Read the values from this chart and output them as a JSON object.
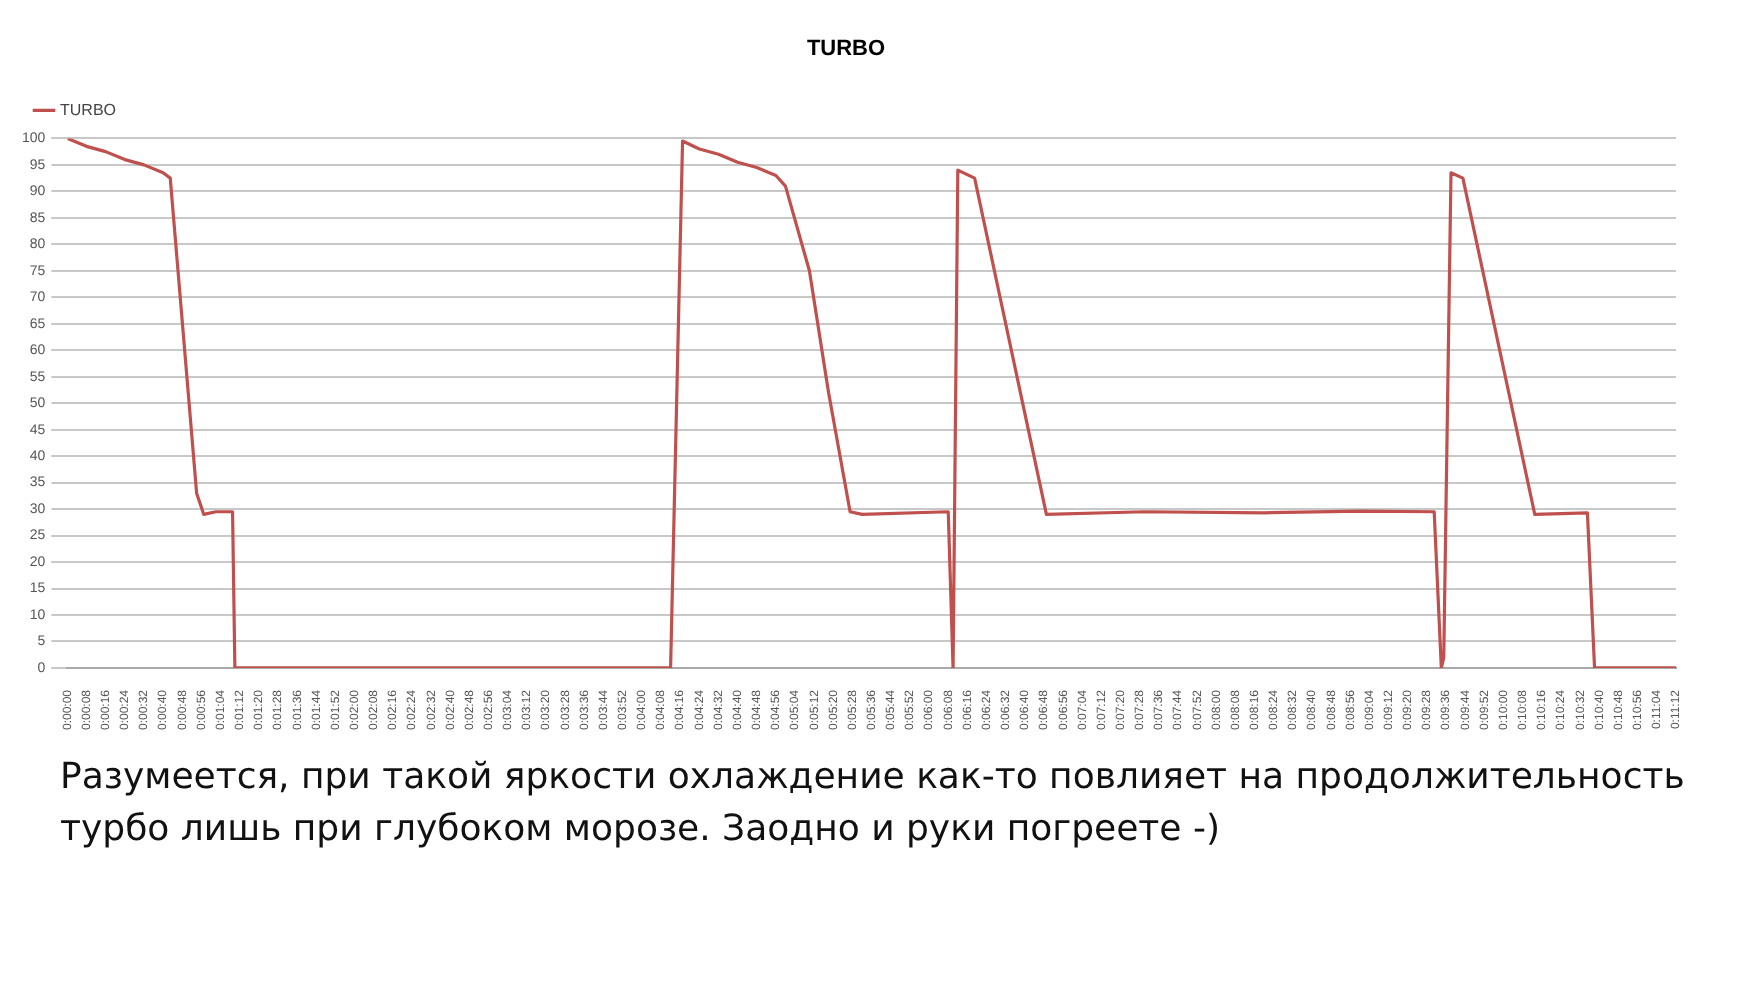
{
  "chart_data": {
    "type": "line",
    "title": "TURBO",
    "legend": "top left",
    "grid": "y",
    "marker": "none",
    "annotations": [
      "Разумеется, при такой яркости охлаждение как-то повлияет на продолжительность турбо лишь при глубоком морозе.  Заодно и руки погреете -)"
    ],
    "xlim": [
      0,
      0.18667
    ],
    "ylim": [
      0,
      100
    ],
    "yticks": [
      0,
      5,
      10,
      15,
      20,
      25,
      30,
      35,
      40,
      45,
      50,
      55,
      60,
      65,
      70,
      75,
      80,
      85,
      90,
      95,
      100
    ],
    "xticks": [
      {
        "value": 0,
        "label": "0:00:00"
      },
      {
        "value": 0.00222,
        "label": "0:00:08"
      },
      {
        "value": 0.00444,
        "label": "0:00:16"
      },
      {
        "value": 0.00667,
        "label": "0:00:24"
      },
      {
        "value": 0.00889,
        "label": "0:00:32"
      },
      {
        "value": 0.01111,
        "label": "0:00:40"
      },
      {
        "value": 0.01333,
        "label": "0:00:48"
      },
      {
        "value": 0.01556,
        "label": "0:00:56"
      },
      {
        "value": 0.01778,
        "label": "0:01:04"
      },
      {
        "value": 0.02,
        "label": "0:01:12"
      },
      {
        "value": 0.02222,
        "label": "0:01:20"
      },
      {
        "value": 0.02444,
        "label": "0:01:28"
      },
      {
        "value": 0.02667,
        "label": "0:01:36"
      },
      {
        "value": 0.02889,
        "label": "0:01:44"
      },
      {
        "value": 0.03111,
        "label": "0:01:52"
      },
      {
        "value": 0.03333,
        "label": "0:02:00"
      },
      {
        "value": 0.03556,
        "label": "0:02:08"
      },
      {
        "value": 0.03778,
        "label": "0:02:16"
      },
      {
        "value": 0.04,
        "label": "0:02:24"
      },
      {
        "value": 0.04222,
        "label": "0:02:32"
      },
      {
        "value": 0.04444,
        "label": "0:02:40"
      },
      {
        "value": 0.04667,
        "label": "0:02:48"
      },
      {
        "value": 0.04889,
        "label": "0:02:56"
      },
      {
        "value": 0.05111,
        "label": "0:03:04"
      },
      {
        "value": 0.05333,
        "label": "0:03:12"
      },
      {
        "value": 0.05556,
        "label": "0:03:20"
      },
      {
        "value": 0.05778,
        "label": "0:03:28"
      },
      {
        "value": 0.06,
        "label": "0:03:36"
      },
      {
        "value": 0.06222,
        "label": "0:03:44"
      },
      {
        "value": 0.06444,
        "label": "0:03:52"
      },
      {
        "value": 0.06667,
        "label": "0:04:00"
      },
      {
        "value": 0.06889,
        "label": "0:04:08"
      },
      {
        "value": 0.07111,
        "label": "0:04:16"
      },
      {
        "value": 0.07333,
        "label": "0:04:24"
      },
      {
        "value": 0.07556,
        "label": "0:04:32"
      },
      {
        "value": 0.07778,
        "label": "0:04:40"
      },
      {
        "value": 0.08,
        "label": "0:04:48"
      },
      {
        "value": 0.08222,
        "label": "0:04:56"
      },
      {
        "value": 0.08444,
        "label": "0:05:04"
      },
      {
        "value": 0.08667,
        "label": "0:05:12"
      },
      {
        "value": 0.08889,
        "label": "0:05:20"
      },
      {
        "value": 0.09111,
        "label": "0:05:28"
      },
      {
        "value": 0.09333,
        "label": "0:05:36"
      },
      {
        "value": 0.09556,
        "label": "0:05:44"
      },
      {
        "value": 0.09778,
        "label": "0:05:52"
      },
      {
        "value": 0.1,
        "label": "0:06:00"
      },
      {
        "value": 0.10222,
        "label": "0:06:08"
      },
      {
        "value": 0.10444,
        "label": "0:06:16"
      },
      {
        "value": 0.10667,
        "label": "0:06:24"
      },
      {
        "value": 0.10889,
        "label": "0:06:32"
      },
      {
        "value": 0.11111,
        "label": "0:06:40"
      },
      {
        "value": 0.11333,
        "label": "0:06:48"
      },
      {
        "value": 0.11556,
        "label": "0:06:56"
      },
      {
        "value": 0.11778,
        "label": "0:07:04"
      },
      {
        "value": 0.12,
        "label": "0:07:12"
      },
      {
        "value": 0.12222,
        "label": "0:07:20"
      },
      {
        "value": 0.12444,
        "label": "0:07:28"
      },
      {
        "value": 0.12667,
        "label": "0:07:36"
      },
      {
        "value": 0.12889,
        "label": "0:07:44"
      },
      {
        "value": 0.13111,
        "label": "0:07:52"
      },
      {
        "value": 0.13333,
        "label": "0:08:00"
      },
      {
        "value": 0.13556,
        "label": "0:08:08"
      },
      {
        "value": 0.13778,
        "label": "0:08:16"
      },
      {
        "value": 0.14,
        "label": "0:08:24"
      },
      {
        "value": 0.14222,
        "label": "0:08:32"
      },
      {
        "value": 0.14444,
        "label": "0:08:40"
      },
      {
        "value": 0.14667,
        "label": "0:08:48"
      },
      {
        "value": 0.14889,
        "label": "0:08:56"
      },
      {
        "value": 0.15111,
        "label": "0:09:04"
      },
      {
        "value": 0.15333,
        "label": "0:09:12"
      },
      {
        "value": 0.15556,
        "label": "0:09:20"
      },
      {
        "value": 0.15778,
        "label": "0:09:28"
      },
      {
        "value": 0.16,
        "label": "0:09:36"
      },
      {
        "value": 0.16222,
        "label": "0:09:44"
      },
      {
        "value": 0.16444,
        "label": "0:09:52"
      },
      {
        "value": 0.16667,
        "label": "0:10:00"
      },
      {
        "value": 0.16889,
        "label": "0:10:08"
      },
      {
        "value": 0.17111,
        "label": "0:10:16"
      },
      {
        "value": 0.17333,
        "label": "0:10:24"
      },
      {
        "value": 0.17556,
        "label": "0:10:32"
      },
      {
        "value": 0.17778,
        "label": "0:10:40"
      },
      {
        "value": 0.18,
        "label": "0:10:48"
      },
      {
        "value": 0.18222,
        "label": "0:10:56"
      },
      {
        "value": 0.18444,
        "label": "0:11:04"
      },
      {
        "value": 0.18667,
        "label": "0:11:12"
      }
    ],
    "series": [
      {
        "name": "TURBO",
        "color": "#c0504d",
        "x": [
          0,
          0.00222,
          0.00444,
          0.00667,
          0.00889,
          0.01111,
          0.01194,
          0.015,
          0.01583,
          0.01722,
          0.01917,
          0.01944,
          0.07,
          0.07139,
          0.07333,
          0.07556,
          0.07778,
          0.08,
          0.08222,
          0.08333,
          0.08611,
          0.08833,
          0.09083,
          0.09222,
          0.10222,
          0.10278,
          0.10333,
          0.10528,
          0.11361,
          0.125,
          0.13889,
          0.15,
          0.15861,
          0.15944,
          0.15972,
          0.16056,
          0.16194,
          0.17028,
          0.17639,
          0.17722,
          0.18667
        ],
        "values": [
          100,
          98.5,
          97.5,
          96,
          95,
          93.5,
          92.5,
          33,
          29,
          29.5,
          29.5,
          0,
          0,
          99.5,
          98,
          97,
          95.5,
          94.5,
          93,
          91,
          75,
          52,
          29.5,
          29,
          29.5,
          0,
          94,
          92.5,
          29,
          29.5,
          29.3,
          29.6,
          29.5,
          0,
          2,
          93.5,
          92.5,
          29,
          29.3,
          0,
          0
        ]
      }
    ]
  }
}
